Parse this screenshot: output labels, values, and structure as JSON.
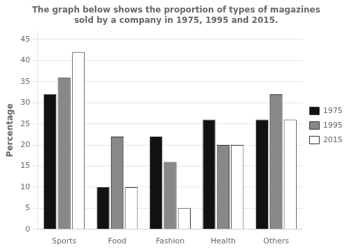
{
  "chart_data": {
    "type": "bar",
    "title": "The graph below shows the proportion of types of magazines\nsold by a company in 1975, 1995 and 2015.",
    "y_label": "Percentage",
    "categories": [
      "Sports",
      "Food",
      "Fashion",
      "Health",
      "Others"
    ],
    "series": [
      {
        "name": "1975",
        "color": "#111111",
        "values": [
          32,
          10,
          22,
          26,
          26
        ]
      },
      {
        "name": "1995",
        "color": "#888888",
        "values": [
          36,
          22,
          16,
          20,
          32
        ]
      },
      {
        "name": "2015",
        "color": "#ffffff",
        "values": [
          42,
          10,
          5,
          20,
          26
        ]
      }
    ],
    "ylim": [
      0,
      47
    ],
    "yticks": [
      0,
      5,
      10,
      15,
      20,
      25,
      30,
      35,
      40,
      45
    ],
    "grid": true,
    "legend": "right"
  }
}
